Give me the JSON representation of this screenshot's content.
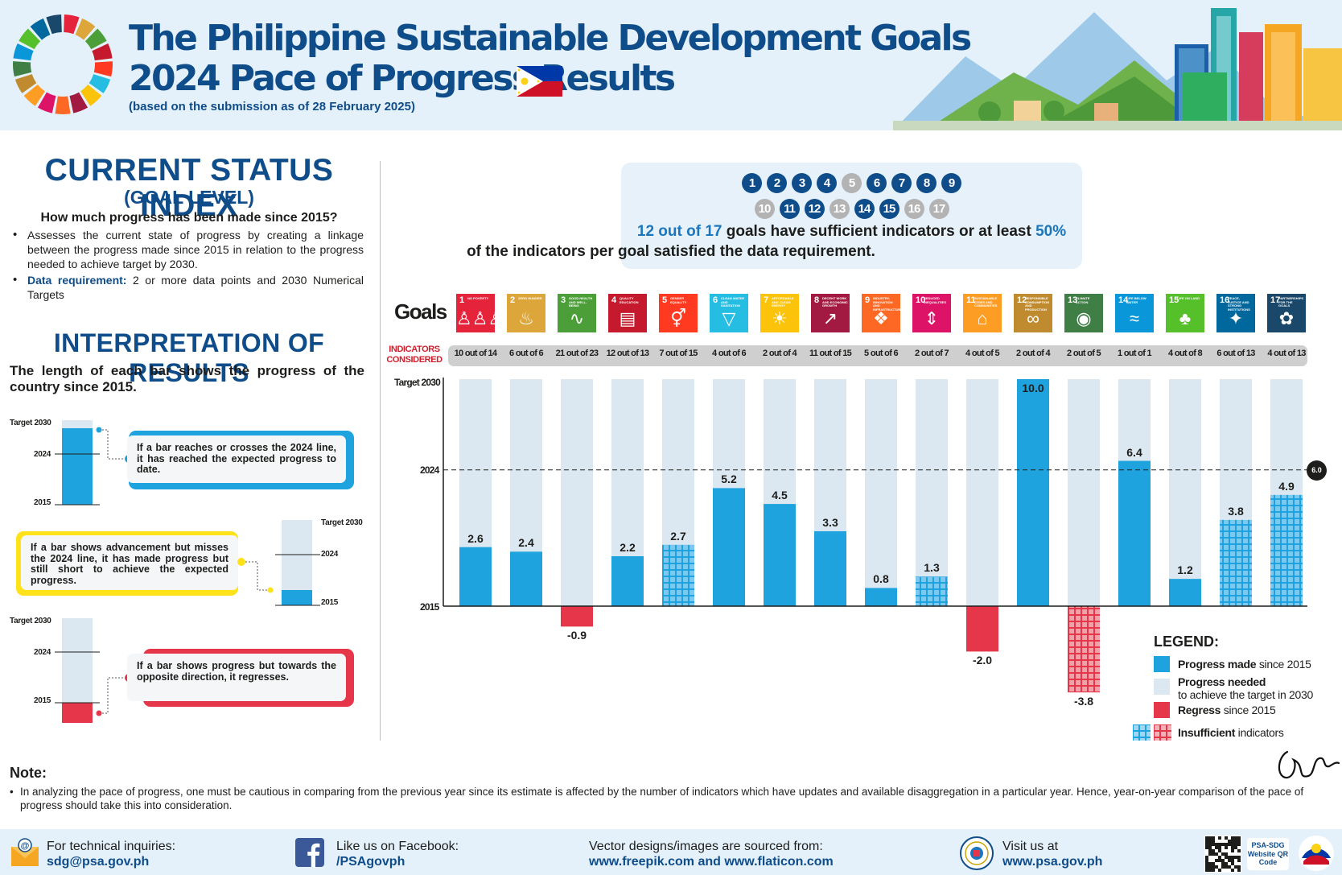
{
  "header": {
    "title_line1": "The Philippine Sustainable Development Goals",
    "title_line2": "2024 Pace of Progress Results",
    "subtitle": "(based on the submission as of 28 February 2025)"
  },
  "left_panel": {
    "csi_title": "CURRENT STATUS INDEX",
    "csi_subtitle": "(GOAL LEVEL)",
    "csi_question": "How much progress has been made since 2015?",
    "bullet1": "Assesses the current state of progress by creating a linkage between the progress made since 2015 in relation to the progress needed to achieve target by 2030.",
    "bullet2_label": "Data requirement:",
    "bullet2_text": " 2 or more data points and 2030 Numerical Targets",
    "ior_title": "INTERPRETATION OF RESULTS",
    "ior_desc": "The length of each bar shows the progress of the country since 2015.",
    "mini_labels": {
      "target": "Target 2030",
      "y2024": "2024",
      "y2015": "2015"
    },
    "callout1": "If a bar reaches or crosses the 2024 line, it has reached the expected progress to date.",
    "callout2": "If a bar shows advancement but misses the 2024 line, it has made progress but still short to achieve the expected progress.",
    "callout3": "If a bar shows progress but towards the opposite direction, it regresses."
  },
  "info_box": {
    "circles": [
      {
        "n": "1",
        "ok": true
      },
      {
        "n": "2",
        "ok": true
      },
      {
        "n": "3",
        "ok": true
      },
      {
        "n": "4",
        "ok": true
      },
      {
        "n": "5",
        "ok": false
      },
      {
        "n": "6",
        "ok": true
      },
      {
        "n": "7",
        "ok": true
      },
      {
        "n": "8",
        "ok": true
      },
      {
        "n": "9",
        "ok": true
      },
      {
        "n": "10",
        "ok": false
      },
      {
        "n": "11",
        "ok": true
      },
      {
        "n": "12",
        "ok": true
      },
      {
        "n": "13",
        "ok": false
      },
      {
        "n": "14",
        "ok": true
      },
      {
        "n": "15",
        "ok": true
      },
      {
        "n": "16",
        "ok": false
      },
      {
        "n": "17",
        "ok": false
      }
    ],
    "line1_a": "12 out of 17",
    "line1_b": " goals have sufficient indicators or at least ",
    "line1_c": "50%",
    "line2": "of the indicators per goal satisfied the data requirement."
  },
  "chart_labels": {
    "goals": "Goals",
    "indicators_considered": "INDICATORS CONSIDERED",
    "target2030": "Target 2030",
    "y2024": "2024",
    "y2015": "2015",
    "line_2024_value": "6.0"
  },
  "goal_icons": [
    {
      "n": "1",
      "title": "No Poverty",
      "glyph": "♙♙♙"
    },
    {
      "n": "2",
      "title": "Zero Hunger",
      "glyph": "♨"
    },
    {
      "n": "3",
      "title": "Good Health and Well-Being",
      "glyph": "∿"
    },
    {
      "n": "4",
      "title": "Quality Education",
      "glyph": "▤"
    },
    {
      "n": "5",
      "title": "Gender Equality",
      "glyph": "⚥"
    },
    {
      "n": "6",
      "title": "Clean Water and Sanitation",
      "glyph": "▽"
    },
    {
      "n": "7",
      "title": "Affordable and Clean Energy",
      "glyph": "☀"
    },
    {
      "n": "8",
      "title": "Decent Work and Economic Growth",
      "glyph": "↗"
    },
    {
      "n": "9",
      "title": "Industry, Innovation and Infrastructure",
      "glyph": "❖"
    },
    {
      "n": "10",
      "title": "Reduced Inequalities",
      "glyph": "⇕"
    },
    {
      "n": "11",
      "title": "Sustainable Cities and Communities",
      "glyph": "⌂"
    },
    {
      "n": "12",
      "title": "Responsible Consumption and Production",
      "glyph": "∞"
    },
    {
      "n": "13",
      "title": "Climate Action",
      "glyph": "◉"
    },
    {
      "n": "14",
      "title": "Life Below Water",
      "glyph": "≈"
    },
    {
      "n": "15",
      "title": "Life on Land",
      "glyph": "♣"
    },
    {
      "n": "16",
      "title": "Peace, Justice and Strong Institutions",
      "glyph": "✦"
    },
    {
      "n": "17",
      "title": "Partnerships for the Goals",
      "glyph": "✿"
    }
  ],
  "chart_data": {
    "type": "bar",
    "categories": [
      "1",
      "2",
      "3",
      "4",
      "5",
      "6",
      "7",
      "8",
      "9",
      "10",
      "11",
      "12",
      "13",
      "14",
      "15",
      "16",
      "17"
    ],
    "indicators_considered": [
      "10 out of 14",
      "6 out of 6",
      "21 out of 23",
      "12 out of 13",
      "7 out of 15",
      "4 out of 6",
      "2 out of 4",
      "11 out of 15",
      "5 out of 6",
      "2 out of 7",
      "4 out of 5",
      "2 out of 4",
      "2 out of 5",
      "1 out of 1",
      "4 out of 8",
      "6 out of 13",
      "4 out of 13"
    ],
    "values": [
      2.6,
      2.4,
      -0.9,
      2.2,
      2.7,
      5.2,
      4.5,
      3.3,
      0.8,
      1.3,
      -2.0,
      10.0,
      -3.8,
      6.4,
      1.2,
      3.8,
      4.9
    ],
    "sufficient": [
      true,
      true,
      true,
      true,
      false,
      true,
      true,
      true,
      true,
      false,
      true,
      true,
      false,
      true,
      true,
      false,
      false
    ],
    "value_labels": [
      "2.6",
      "2.4",
      "-0.9",
      "2.2",
      "2.7",
      "5.2",
      "4.5",
      "3.3",
      "0.8",
      "1.3",
      "-2.0",
      "10.0",
      "-3.8",
      "6.4",
      "1.2",
      "3.8",
      "4.9"
    ],
    "reference_line": 6.0,
    "ylim": [
      -3.8,
      10.0
    ],
    "legend": [
      {
        "key": "progress",
        "bold": "Progress made",
        "rest": " since 2015"
      },
      {
        "key": "needed",
        "bold": "Progress needed",
        "rest": "",
        "sub": "to achieve the target in 2030"
      },
      {
        "key": "regress",
        "bold": "Regress",
        "rest": " since 2015"
      },
      {
        "key": "insufficient",
        "bold": "Insufficient",
        "rest": " indicators"
      }
    ],
    "legend_title": "LEGEND:"
  },
  "colors": {
    "progress": "#1ea3df",
    "needed": "#dce8f1",
    "regress": "#e5364a",
    "insufficient_blue": "#7cc8ee",
    "insufficient_red": "#f2a0a9",
    "navy": "#0f4c8a",
    "grey_circle": "#b3b3b3"
  },
  "note": {
    "title": "Note:",
    "text": "In analyzing the pace of progress, one must be cautious in comparing from the previous year since its estimate is affected by the number of indicators which have updates and available disaggregation in a particular year. Hence, year-on-year comparison of the pace of progress should take this into consideration."
  },
  "footer": {
    "inq_label": "For technical inquiries:",
    "inq_value": "sdg@psa.gov.ph",
    "fb_label": "Like us on Facebook:",
    "fb_value": "/PSAgovph",
    "vec_label": "Vector designs/images are sourced from:",
    "vec_value": "www.freepik.com and www.flaticon.com",
    "visit_label": "Visit us at",
    "visit_value": "www.psa.gov.ph",
    "qr_label": "PSA-SDG Website QR Code"
  }
}
